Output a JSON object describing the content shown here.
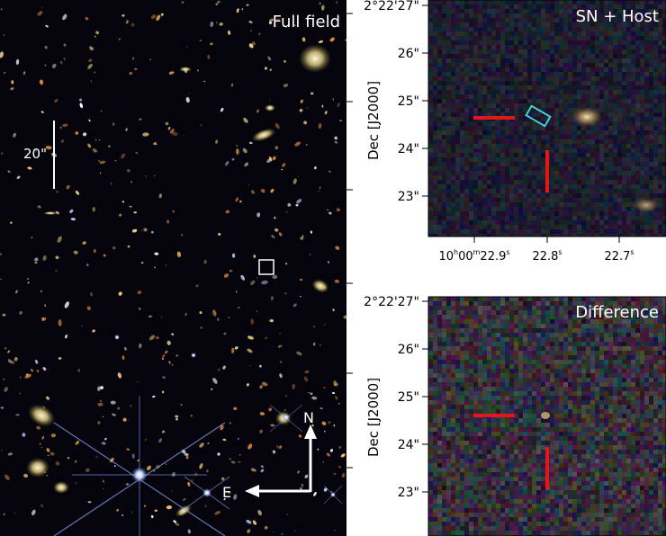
{
  "panels": {
    "full_field": {
      "title": "Full field",
      "scale_label": "20\"",
      "north": "N",
      "east": "E"
    },
    "sn_host": {
      "title": "SN + Host"
    },
    "difference": {
      "title": "Difference"
    }
  },
  "axes": {
    "dec_label": "Dec [J2000]",
    "dec_ticks_top": [
      "2°22'27\"",
      "26\"",
      "25\"",
      "24\"",
      "23\""
    ],
    "dec_ticks_bottom": [
      "2°22'27\"",
      "26\"",
      "25\"",
      "24\"",
      "23\""
    ],
    "ra_ticks": [
      {
        "main": "10",
        "h": "h",
        "m_val": "00",
        "m": "m",
        "s_val": "22.9",
        "s": "s"
      },
      {
        "main": "22.8",
        "s": "s"
      },
      {
        "main": "22.7",
        "s": "s"
      }
    ]
  },
  "colors": {
    "background": "#05040c",
    "marker": "#e4151b",
    "cyan_box": "#3fd6d6",
    "arrow": "#ffffff"
  }
}
